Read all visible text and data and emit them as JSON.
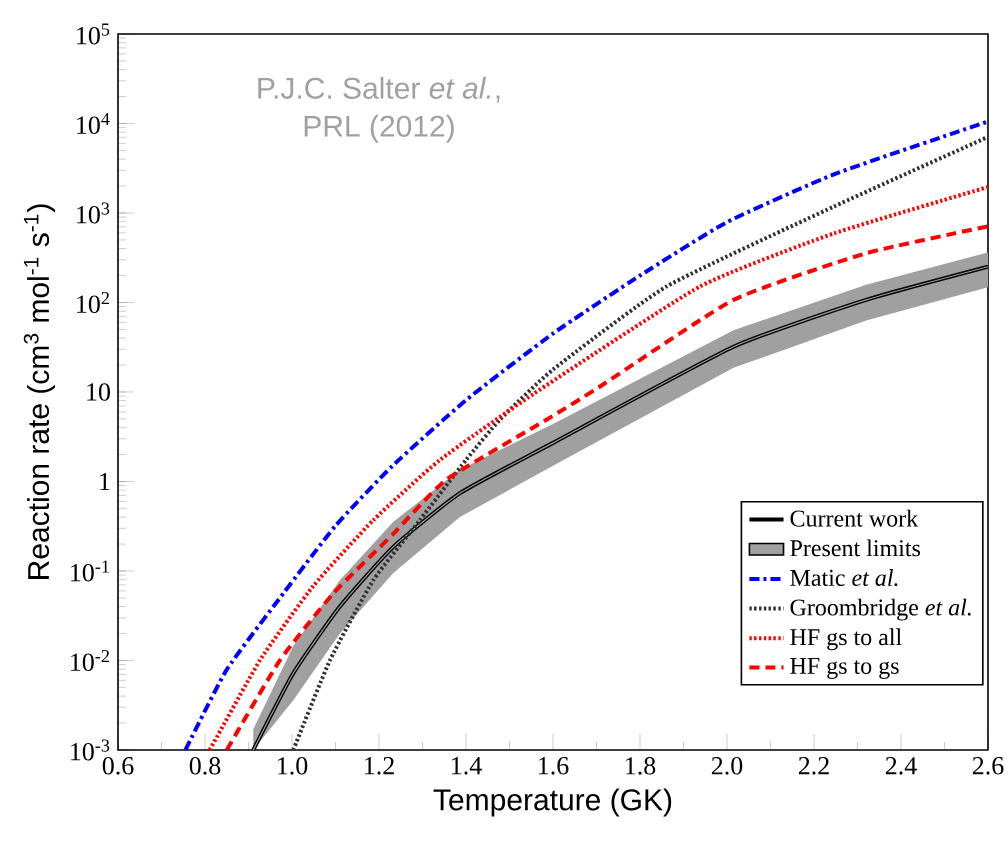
{
  "chart_data": {
    "type": "line",
    "xlabel": "Temperature (GK)",
    "ylabel": "Reaction rate (cm$^{3}$ mol$^{-1}$ s$^{-1}$)",
    "annotations": [
      "P.J.C. Salter *et al.*,",
      "PRL (2012)"
    ],
    "log": "y",
    "xlim": [
      0.6,
      2.6
    ],
    "ylim": [
      0.001,
      100000
    ],
    "xticks": [
      {
        "value": 0.6,
        "label": "0.6"
      },
      {
        "value": 0.8,
        "label": "0.8"
      },
      {
        "value": 1.0,
        "label": "1.0"
      },
      {
        "value": 1.2,
        "label": "1.2"
      },
      {
        "value": 1.4,
        "label": "1.4"
      },
      {
        "value": 1.6,
        "label": "1.6"
      },
      {
        "value": 1.8,
        "label": "1.8"
      },
      {
        "value": 2.0,
        "label": "2.0"
      },
      {
        "value": 2.2,
        "label": "2.2"
      },
      {
        "value": 2.4,
        "label": "2.4"
      },
      {
        "value": 2.6,
        "label": "2.6"
      }
    ],
    "yticks": [
      {
        "value": 0.001,
        "label": "10$^{-3}$"
      },
      {
        "value": 0.01,
        "label": "10$^{-2}$"
      },
      {
        "value": 0.1,
        "label": "10$^{-1}$"
      },
      1,
      10,
      {
        "value": 100,
        "label": "10$^{2}$"
      },
      {
        "value": 1000,
        "label": "10$^{3}$"
      },
      {
        "value": 10000,
        "label": "10$^{4}$"
      },
      {
        "value": 100000,
        "label": "10$^{5}$"
      }
    ],
    "grid": false,
    "legend": "bottom right",
    "marker": "none",
    "series": [
      {
        "name": "Current work",
        "color": "#000000",
        "line_style": "solid",
        "x": [
          0.911,
          1.003,
          1.11,
          1.233,
          1.386,
          1.6,
          2.015,
          2.32,
          2.6
        ],
        "values": [
          0.001,
          0.0072,
          0.04,
          0.186,
          0.74,
          2.7,
          32,
          107,
          251
        ]
      },
      {
        "name": "Present limits",
        "color": "#a0a0a0",
        "x": [
          0.911,
          1.003,
          1.11,
          1.233,
          1.386,
          1.6,
          2.015,
          2.32,
          2.6
        ],
        "values": [
          0.001,
          0.0072,
          0.04,
          0.186,
          0.74,
          2.7,
          32,
          107,
          251
        ],
        "lower": [
          0.001,
          0.0036,
          0.02,
          0.095,
          0.4,
          1.5,
          18.6,
          63,
          148
        ],
        "upper": [
          0.0017,
          0.0145,
          0.079,
          0.355,
          1.35,
          4.4,
          49,
          158,
          363
        ]
      },
      {
        "name": "Matic *et al.*",
        "color": "#0000ff",
        "line_style": "dashdot",
        "x": [
          0.755,
          0.85,
          0.98,
          1.1,
          1.23,
          1.4,
          1.6,
          1.8,
          2.0,
          2.25,
          2.6
        ],
        "values": [
          0.001,
          0.0079,
          0.056,
          0.32,
          1.48,
          8.1,
          45,
          200,
          790,
          2750,
          10500
        ]
      },
      {
        "name": "Groombridge *et al.*",
        "color": "#303030",
        "line_style": "dotted",
        "x": [
          1.003,
          1.087,
          1.187,
          1.294,
          1.4,
          1.478,
          1.6,
          1.861,
          2.245,
          2.6
        ],
        "values": [
          0.001,
          0.01,
          0.079,
          0.37,
          1.74,
          4.9,
          17.8,
          151,
          1175,
          7080
        ]
      },
      {
        "name": "HF gs to all",
        "color": "#ff0000",
        "line_style": "dotted",
        "x": [
          0.811,
          0.926,
          1.049,
          1.187,
          1.34,
          1.555,
          1.938,
          2.245,
          2.6
        ],
        "values": [
          0.001,
          0.01,
          0.068,
          0.37,
          1.74,
          9.5,
          151,
          590,
          1950
        ]
      },
      {
        "name": "HF gs to gs",
        "color": "#ff0000",
        "line_style": "dashed",
        "x": [
          0.85,
          0.972,
          1.095,
          1.233,
          1.355,
          1.585,
          1.708,
          2.015,
          2.32,
          2.6
        ],
        "values": [
          0.001,
          0.01,
          0.056,
          0.26,
          1.05,
          4.9,
          11.5,
          107,
          355,
          708
        ]
      }
    ]
  }
}
